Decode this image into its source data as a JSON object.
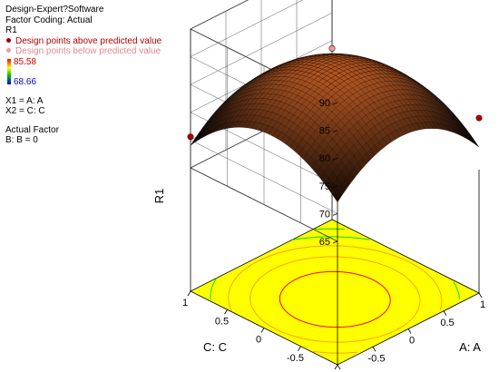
{
  "legend": {
    "software": "Design-Expert?Software",
    "coding": "Factor Coding: Actual",
    "response": "R1",
    "above_label": "Design points above predicted value",
    "below_label": "Design points below predicted value",
    "color_max": "85.58",
    "color_min": "68.66",
    "x1": "X1 = A: A",
    "x2": "X2 = C: C",
    "actual_factor_title": "Actual Factor",
    "actual_factor_value": "B: B = 0"
  },
  "colors": {
    "floor": "#ffff00",
    "surface_high": "#c86428",
    "surface_low": "#000000",
    "point_above": "#b00000",
    "point_below": "#e8a0a0",
    "contour_high": "#ff0000",
    "contour_mid": "#ffa000",
    "contour_low": "#00dd00"
  },
  "chart_data": {
    "type": "surface3d",
    "zlabel": "R1",
    "xlabel": "A: A",
    "ylabel": "C: C",
    "zlim": [
      65,
      90
    ],
    "z_ticks": [
      "65",
      "70",
      "75",
      "80",
      "85",
      "90"
    ],
    "x_ticks": [
      "-1",
      "-0.5",
      "0",
      "0.5",
      "1"
    ],
    "y_ticks": [
      "-1",
      "-0.5",
      "0",
      "0.5",
      "1"
    ],
    "xlim": [
      -1,
      1
    ],
    "ylim": [
      -1,
      1
    ],
    "surface": {
      "peak": 84.2,
      "peak_a": -0.1,
      "peak_c": -0.1,
      "curvature_a": 7.5,
      "curvature_c": 7.5,
      "color_min": 68.66,
      "color_max": 85.58
    },
    "design_points": [
      {
        "a": 1,
        "c": 1,
        "value": 85.58,
        "position": "above"
      },
      {
        "a": 1,
        "c": 1,
        "value": 73.6,
        "position": "below"
      },
      {
        "a": 1,
        "c": -1,
        "value": 74.3,
        "position": "above"
      },
      {
        "a": -1,
        "c": 1,
        "value": 70.6,
        "position": "above"
      }
    ]
  }
}
